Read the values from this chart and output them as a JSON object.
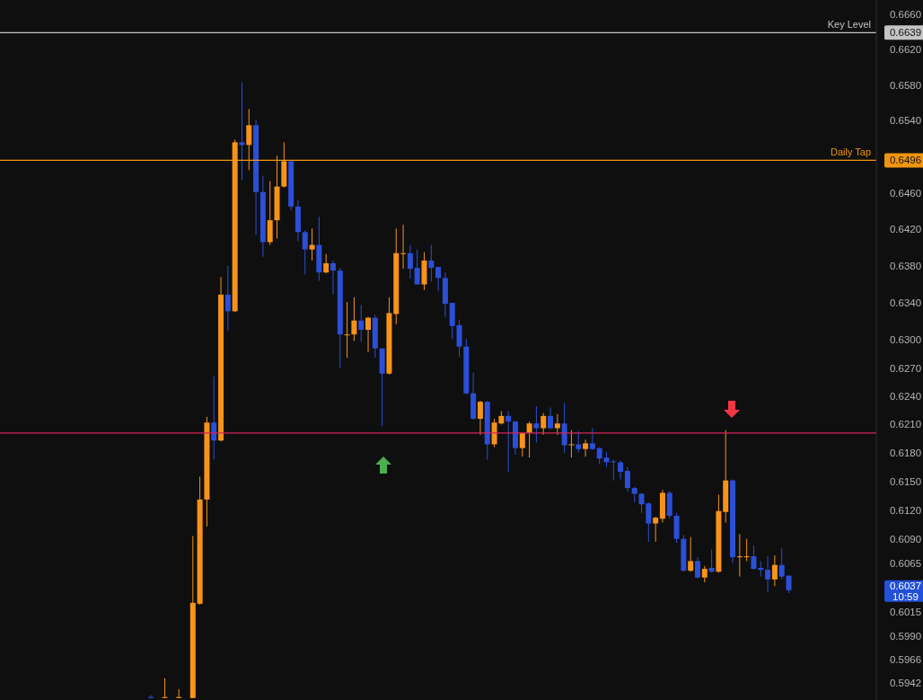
{
  "chart_data": {
    "type": "candlestick",
    "categories": [
      null,
      null,
      null,
      null,
      null,
      null,
      null,
      null,
      null,
      null,
      null,
      null,
      null,
      null,
      null,
      null,
      null,
      null,
      null,
      null,
      null,
      null,
      null,
      null,
      null,
      null,
      null,
      null,
      null,
      null,
      null,
      null,
      null,
      null,
      null,
      null,
      null,
      null,
      null,
      null,
      null,
      null,
      null,
      null,
      null,
      null,
      null,
      null,
      null,
      null,
      null,
      null,
      null,
      null,
      null,
      null,
      null,
      null,
      null,
      null,
      null,
      null,
      null,
      null,
      null,
      null,
      null,
      null,
      null,
      null,
      null,
      null,
      null,
      null,
      null,
      null,
      null,
      null,
      null,
      null,
      null,
      null,
      null,
      null,
      null,
      null,
      null,
      null,
      null,
      null,
      null,
      null,
      null,
      null,
      null,
      null,
      null,
      null,
      null,
      null,
      null,
      null,
      null,
      null,
      null,
      null,
      null,
      null,
      null,
      null,
      null,
      null,
      null,
      null,
      null,
      null,
      null,
      null,
      null,
      null,
      null,
      null,
      null,
      null,
      null
    ],
    "ohlc": [
      null,
      null,
      null,
      null,
      null,
      null,
      null,
      null,
      null,
      null,
      null,
      null,
      null,
      null,
      null,
      null,
      null,
      null,
      null,
      null,
      null,
      [
        0.5928,
        0.593,
        0.5927,
        0.5927
      ],
      null,
      [
        0.5927,
        0.5947,
        0.5927,
        0.5928
      ],
      null,
      [
        0.5927,
        0.5936,
        0.5927,
        0.5928
      ],
      null,
      [
        0.5927,
        0.6093,
        0.5927,
        0.6024
      ],
      [
        0.6023,
        0.6155,
        0.6022,
        0.6131
      ],
      [
        0.6131,
        0.6218,
        0.6103,
        0.6212
      ],
      [
        0.6212,
        0.6261,
        0.6173,
        0.6193
      ],
      [
        0.6193,
        0.6368,
        0.6192,
        0.6349
      ],
      [
        0.6349,
        0.638,
        0.631,
        0.6331
      ],
      [
        0.6331,
        0.6519,
        0.633,
        0.6516
      ],
      [
        0.6516,
        0.6583,
        0.6474,
        0.6513
      ],
      [
        0.6513,
        0.6553,
        0.6485,
        0.6535
      ],
      [
        0.6535,
        0.6541,
        0.6414,
        0.6461
      ],
      [
        0.6461,
        0.6479,
        0.639,
        0.6406
      ],
      [
        0.6406,
        0.6473,
        0.6403,
        0.643
      ],
      [
        0.643,
        0.6501,
        0.641,
        0.6467
      ],
      [
        0.6467,
        0.6516,
        0.6466,
        0.6495
      ],
      [
        0.6495,
        0.6496,
        0.6441,
        0.6445
      ],
      [
        0.6445,
        0.6452,
        0.6407,
        0.6417
      ],
      [
        0.6417,
        0.6419,
        0.6371,
        0.6398
      ],
      [
        0.6398,
        0.6421,
        0.6386,
        0.6403
      ],
      [
        0.6403,
        0.6434,
        0.6364,
        0.6373
      ],
      [
        0.6373,
        0.6393,
        0.6372,
        0.6383
      ],
      [
        0.6383,
        0.6386,
        0.6349,
        0.6375
      ],
      [
        0.6375,
        0.6378,
        0.627,
        0.6306
      ],
      [
        0.6305,
        0.6341,
        0.6281,
        0.6306
      ],
      [
        0.6306,
        0.6346,
        0.6299,
        0.6321
      ],
      [
        0.6321,
        0.6338,
        0.6298,
        0.6311
      ],
      [
        0.6311,
        0.6325,
        0.6287,
        0.6324
      ],
      [
        0.6324,
        0.6327,
        0.6281,
        0.6291
      ],
      [
        0.6291,
        0.6291,
        0.6208,
        0.6264
      ],
      [
        0.6264,
        0.6346,
        0.6263,
        0.6329
      ],
      [
        0.6328,
        0.6421,
        0.6317,
        0.6394
      ],
      [
        0.6393,
        0.6425,
        0.6377,
        0.6394
      ],
      [
        0.6394,
        0.6403,
        0.6366,
        0.6377
      ],
      [
        0.6378,
        0.6398,
        0.636,
        0.636
      ],
      [
        0.636,
        0.6395,
        0.6354,
        0.6386
      ],
      [
        0.6386,
        0.6403,
        0.6363,
        0.6378
      ],
      [
        0.6379,
        0.6379,
        0.6353,
        0.6367
      ],
      [
        0.6367,
        0.6373,
        0.6325,
        0.6339
      ],
      [
        0.634,
        0.634,
        0.6301,
        0.6315
      ],
      [
        0.6316,
        0.6322,
        0.6282,
        0.6293
      ],
      [
        0.6293,
        0.6301,
        0.6242,
        0.6243
      ],
      [
        0.6243,
        0.6265,
        0.6215,
        0.6216
      ],
      [
        0.6216,
        0.6235,
        0.6199,
        0.6234
      ],
      [
        0.6234,
        0.6235,
        0.6173,
        0.6189
      ],
      [
        0.6189,
        0.6216,
        0.6186,
        0.6212
      ],
      [
        0.6211,
        0.6224,
        0.621,
        0.6219
      ],
      [
        0.6219,
        0.6224,
        0.616,
        0.6213
      ],
      [
        0.6213,
        0.6214,
        0.6178,
        0.6185
      ],
      [
        0.6185,
        0.6202,
        0.6176,
        0.6201
      ],
      [
        0.6201,
        0.6213,
        0.6175,
        0.6211
      ],
      [
        0.6211,
        0.6229,
        0.6191,
        0.6206
      ],
      [
        0.6206,
        0.6222,
        0.6199,
        0.6219
      ],
      [
        0.6219,
        0.6228,
        0.6205,
        0.6206
      ],
      [
        0.6206,
        0.6221,
        0.6199,
        0.6211
      ],
      [
        0.6211,
        0.6233,
        0.618,
        0.6188
      ],
      [
        0.6188,
        0.6204,
        0.6175,
        0.6189
      ],
      [
        0.6189,
        0.6203,
        0.618,
        0.6184
      ],
      [
        0.6184,
        0.6194,
        0.6176,
        0.619
      ],
      [
        0.619,
        0.6206,
        0.6183,
        0.6184
      ],
      [
        0.6185,
        0.6186,
        0.6168,
        0.6174
      ],
      [
        0.6175,
        0.6181,
        0.6165,
        0.617
      ],
      [
        0.6171,
        0.6173,
        0.6151,
        0.617
      ],
      [
        0.617,
        0.6172,
        0.6152,
        0.616
      ],
      [
        0.6161,
        0.6165,
        0.6139,
        0.6143
      ],
      [
        0.6143,
        0.6144,
        0.6128,
        0.6137
      ],
      [
        0.6137,
        0.6138,
        0.6117,
        0.6126
      ],
      [
        0.6127,
        0.6128,
        0.6087,
        0.6106
      ],
      [
        0.6106,
        0.6113,
        0.6087,
        0.6112
      ],
      [
        0.6111,
        0.6141,
        0.6107,
        0.6138
      ],
      [
        0.6138,
        0.614,
        0.6111,
        0.6114
      ],
      [
        0.6114,
        0.6117,
        0.6086,
        0.609
      ],
      [
        0.609,
        0.6094,
        0.6056,
        0.6057
      ],
      [
        0.6057,
        0.6092,
        0.6056,
        0.6067
      ],
      [
        0.6067,
        0.6071,
        0.6049,
        0.605
      ],
      [
        0.605,
        0.6062,
        0.6045,
        0.6059
      ],
      [
        0.606,
        0.6079,
        0.6055,
        0.6056
      ],
      [
        0.6056,
        0.6136,
        0.6055,
        0.6119
      ],
      [
        0.6118,
        0.6204,
        0.6107,
        0.6151
      ],
      [
        0.6151,
        0.6152,
        0.6065,
        0.6071
      ],
      [
        0.6071,
        0.6095,
        0.6051,
        0.6072
      ],
      [
        0.6071,
        0.609,
        0.6067,
        0.6072
      ],
      [
        0.6072,
        0.6083,
        0.6058,
        0.6059
      ],
      [
        0.606,
        0.6067,
        0.6051,
        0.6058
      ],
      [
        0.6058,
        0.6072,
        0.6035,
        0.6048
      ],
      [
        0.6048,
        0.6073,
        0.6041,
        0.6063
      ],
      [
        0.6063,
        0.608,
        0.6048,
        0.6051
      ],
      [
        0.6052,
        0.6052,
        0.6034,
        0.6037
      ],
      null,
      null,
      null,
      null,
      null,
      null,
      null,
      null,
      null,
      null,
      null,
      null
    ],
    "colors": [
      null,
      null,
      null,
      null,
      null,
      null,
      null,
      null,
      null,
      null,
      null,
      null,
      null,
      null,
      null,
      null,
      null,
      null,
      null,
      null,
      null,
      "#2b4fd6",
      null,
      "#f7931a",
      null,
      "#f7931a",
      null,
      "#f7931a",
      "#f7931a",
      "#f7931a",
      "#2b4fd6",
      "#f7931a",
      "#2b4fd6",
      "#f7931a",
      "#2b4fd6",
      "#f7931a",
      "#2b4fd6",
      "#2b4fd6",
      "#f7931a",
      "#f7931a",
      "#f7931a",
      "#2b4fd6",
      "#2b4fd6",
      "#2b4fd6",
      "#f7931a",
      "#2b4fd6",
      "#f7931a",
      "#2b4fd6",
      "#2b4fd6",
      "#f7931a",
      "#f7931a",
      "#2b4fd6",
      "#f7931a",
      "#2b4fd6",
      "#2b4fd6",
      "#f7931a",
      "#f7931a",
      "#f7931a",
      "#2b4fd6",
      "#2b4fd6",
      "#f7931a",
      "#2b4fd6",
      "#2b4fd6",
      "#2b4fd6",
      "#2b4fd6",
      "#2b4fd6",
      "#2b4fd6",
      "#2b4fd6",
      "#f7931a",
      "#2b4fd6",
      "#f7931a",
      "#f7931a",
      "#2b4fd6",
      "#2b4fd6",
      "#f7931a",
      "#f7931a",
      "#2b4fd6",
      "#f7931a",
      "#2b4fd6",
      "#f7931a",
      "#2b4fd6",
      "#f7931a",
      "#2b4fd6",
      "#f7931a",
      "#2b4fd6",
      "#2b4fd6",
      "#2b4fd6",
      "#2b4fd6",
      "#2b4fd6",
      "#2b4fd6",
      "#2b4fd6",
      "#2b4fd6",
      "#2b4fd6",
      "#f7931a",
      "#f7931a",
      "#2b4fd6",
      "#2b4fd6",
      "#2b4fd6",
      "#f7931a",
      "#2b4fd6",
      "#f7931a",
      "#2b4fd6",
      "#f7931a",
      "#f7931a",
      "#2b4fd6",
      "#f7931a",
      "#f7931a",
      "#2b4fd6",
      "#2b4fd6",
      "#2b4fd6",
      "#f7931a",
      "#2b4fd6",
      "#2b4fd6",
      null,
      null,
      null,
      null,
      null,
      null,
      null,
      null,
      null,
      null,
      null,
      null
    ],
    "log": true,
    "ylim": [
      0.5925,
      0.6676
    ],
    "yticks": [
      {
        "value": 0.666,
        "label": "0.6660"
      },
      0.6639,
      {
        "value": 0.662,
        "label": "0.6620"
      },
      {
        "value": 0.658,
        "label": "0.6580"
      },
      {
        "value": 0.654,
        "label": "0.6540"
      },
      0.6496,
      {
        "value": 0.646,
        "label": "0.6460"
      },
      {
        "value": 0.642,
        "label": "0.6420"
      },
      {
        "value": 0.638,
        "label": "0.6380"
      },
      {
        "value": 0.634,
        "label": "0.6340"
      },
      {
        "value": 0.63,
        "label": "0.6300"
      },
      {
        "value": 0.627,
        "label": "0.6270"
      },
      {
        "value": 0.624,
        "label": "0.6240"
      },
      {
        "value": 0.621,
        "label": "0.6210"
      },
      {
        "value": 0.618,
        "label": "0.6180"
      },
      {
        "value": 0.615,
        "label": "0.6150"
      },
      {
        "value": 0.612,
        "label": "0.6120"
      },
      {
        "value": 0.609,
        "label": "0.6090"
      },
      0.6065,
      0.6037,
      0.6015,
      {
        "value": 0.599,
        "label": "0.5990"
      },
      0.5966,
      0.5942
    ],
    "ref_lines": [
      {
        "axis": "y",
        "value": 0.6639,
        "label": "Key Level",
        "color": "#c4c4c4"
      },
      {
        "axis": "y",
        "value": 0.6496,
        "label": "Daily Tap",
        "color": "#f0950f"
      },
      {
        "axis": "y",
        "value": 0.6201,
        "label": null,
        "color": "#d6245a"
      }
    ],
    "annotations": [
      "10:59"
    ]
  }
}
